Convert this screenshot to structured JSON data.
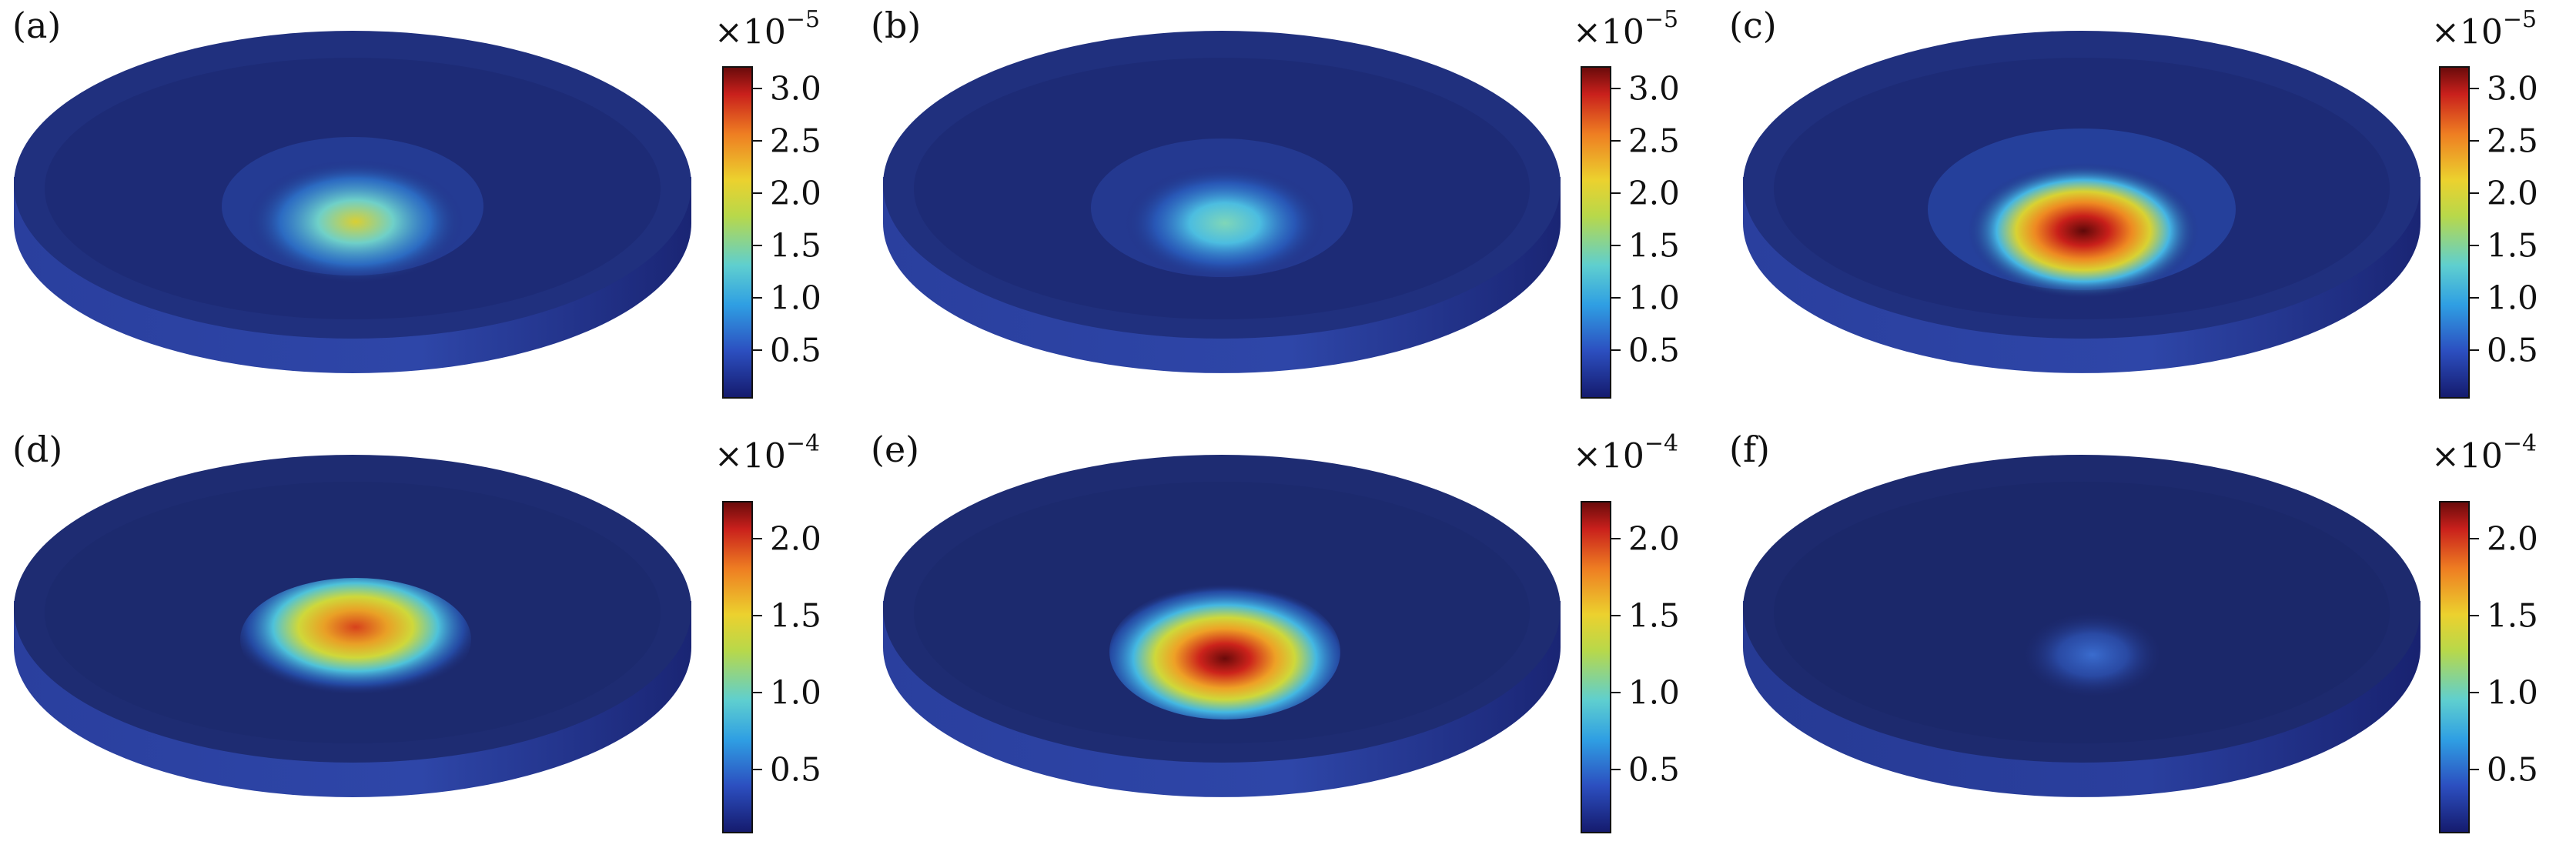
{
  "panels": [
    {
      "label": "(a)",
      "scale_prefix": "×10",
      "scale_exponent": "−5",
      "colorbar_ticks": [
        "3.0",
        "2.5",
        "2.0",
        "1.5",
        "1.0",
        "0.5"
      ]
    },
    {
      "label": "(b)",
      "scale_prefix": "×10",
      "scale_exponent": "−5",
      "colorbar_ticks": [
        "3.0",
        "2.5",
        "2.0",
        "1.5",
        "1.0",
        "0.5"
      ]
    },
    {
      "label": "(c)",
      "scale_prefix": "×10",
      "scale_exponent": "−5",
      "colorbar_ticks": [
        "3.0",
        "2.5",
        "2.0",
        "1.5",
        "1.0",
        "0.5"
      ]
    },
    {
      "label": "(d)",
      "scale_prefix": "×10",
      "scale_exponent": "−4",
      "colorbar_ticks": [
        "2.0",
        "1.5",
        "1.0",
        "0.5"
      ]
    },
    {
      "label": "(e)",
      "scale_prefix": "×10",
      "scale_exponent": "−4",
      "colorbar_ticks": [
        "2.0",
        "1.5",
        "1.0",
        "0.5"
      ]
    },
    {
      "label": "(f)",
      "scale_prefix": "×10",
      "scale_exponent": "−4",
      "colorbar_ticks": [
        "2.0",
        "1.5",
        "1.0",
        "0.5"
      ]
    }
  ],
  "colors": {
    "disk_body": "#1f2c78",
    "disk_edge": "#2b3f9c",
    "hot": "#7a0d0d",
    "warm": "#e9d12a",
    "cool": "#3fb7e6"
  }
}
